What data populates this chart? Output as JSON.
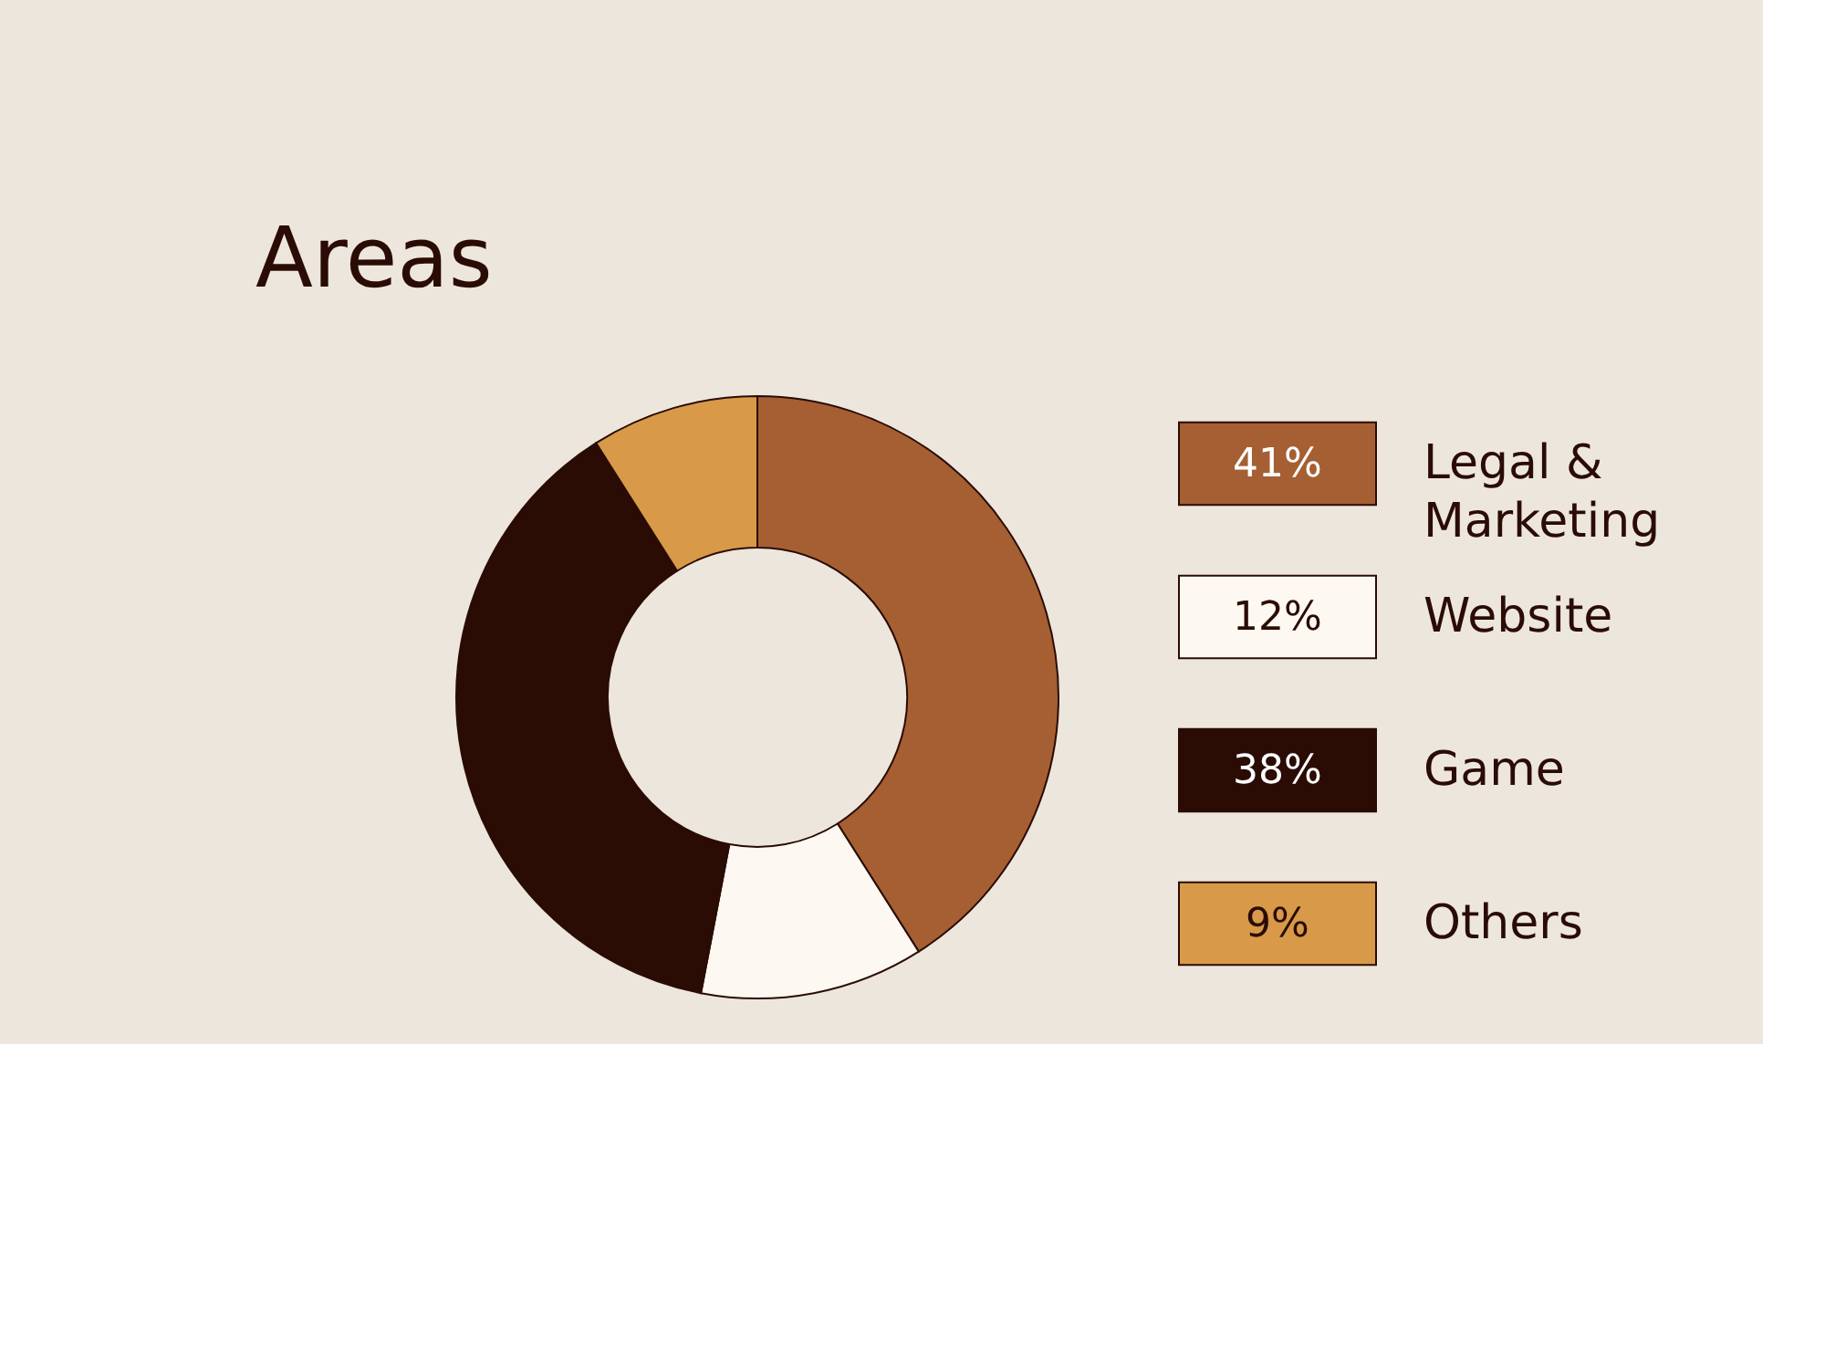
{
  "chart_data": {
    "type": "donut",
    "title": "Areas",
    "categories": [
      "Legal & Marketing",
      "Website",
      "Game",
      "Others"
    ],
    "values": [
      41,
      12,
      38,
      9
    ],
    "colors": [
      "#a55f32",
      "#fdf9f2",
      "#2a0c05",
      "#d89a48"
    ],
    "value_labels": [
      "41%",
      "12%",
      "38%",
      "9%"
    ],
    "legend": "right"
  }
}
